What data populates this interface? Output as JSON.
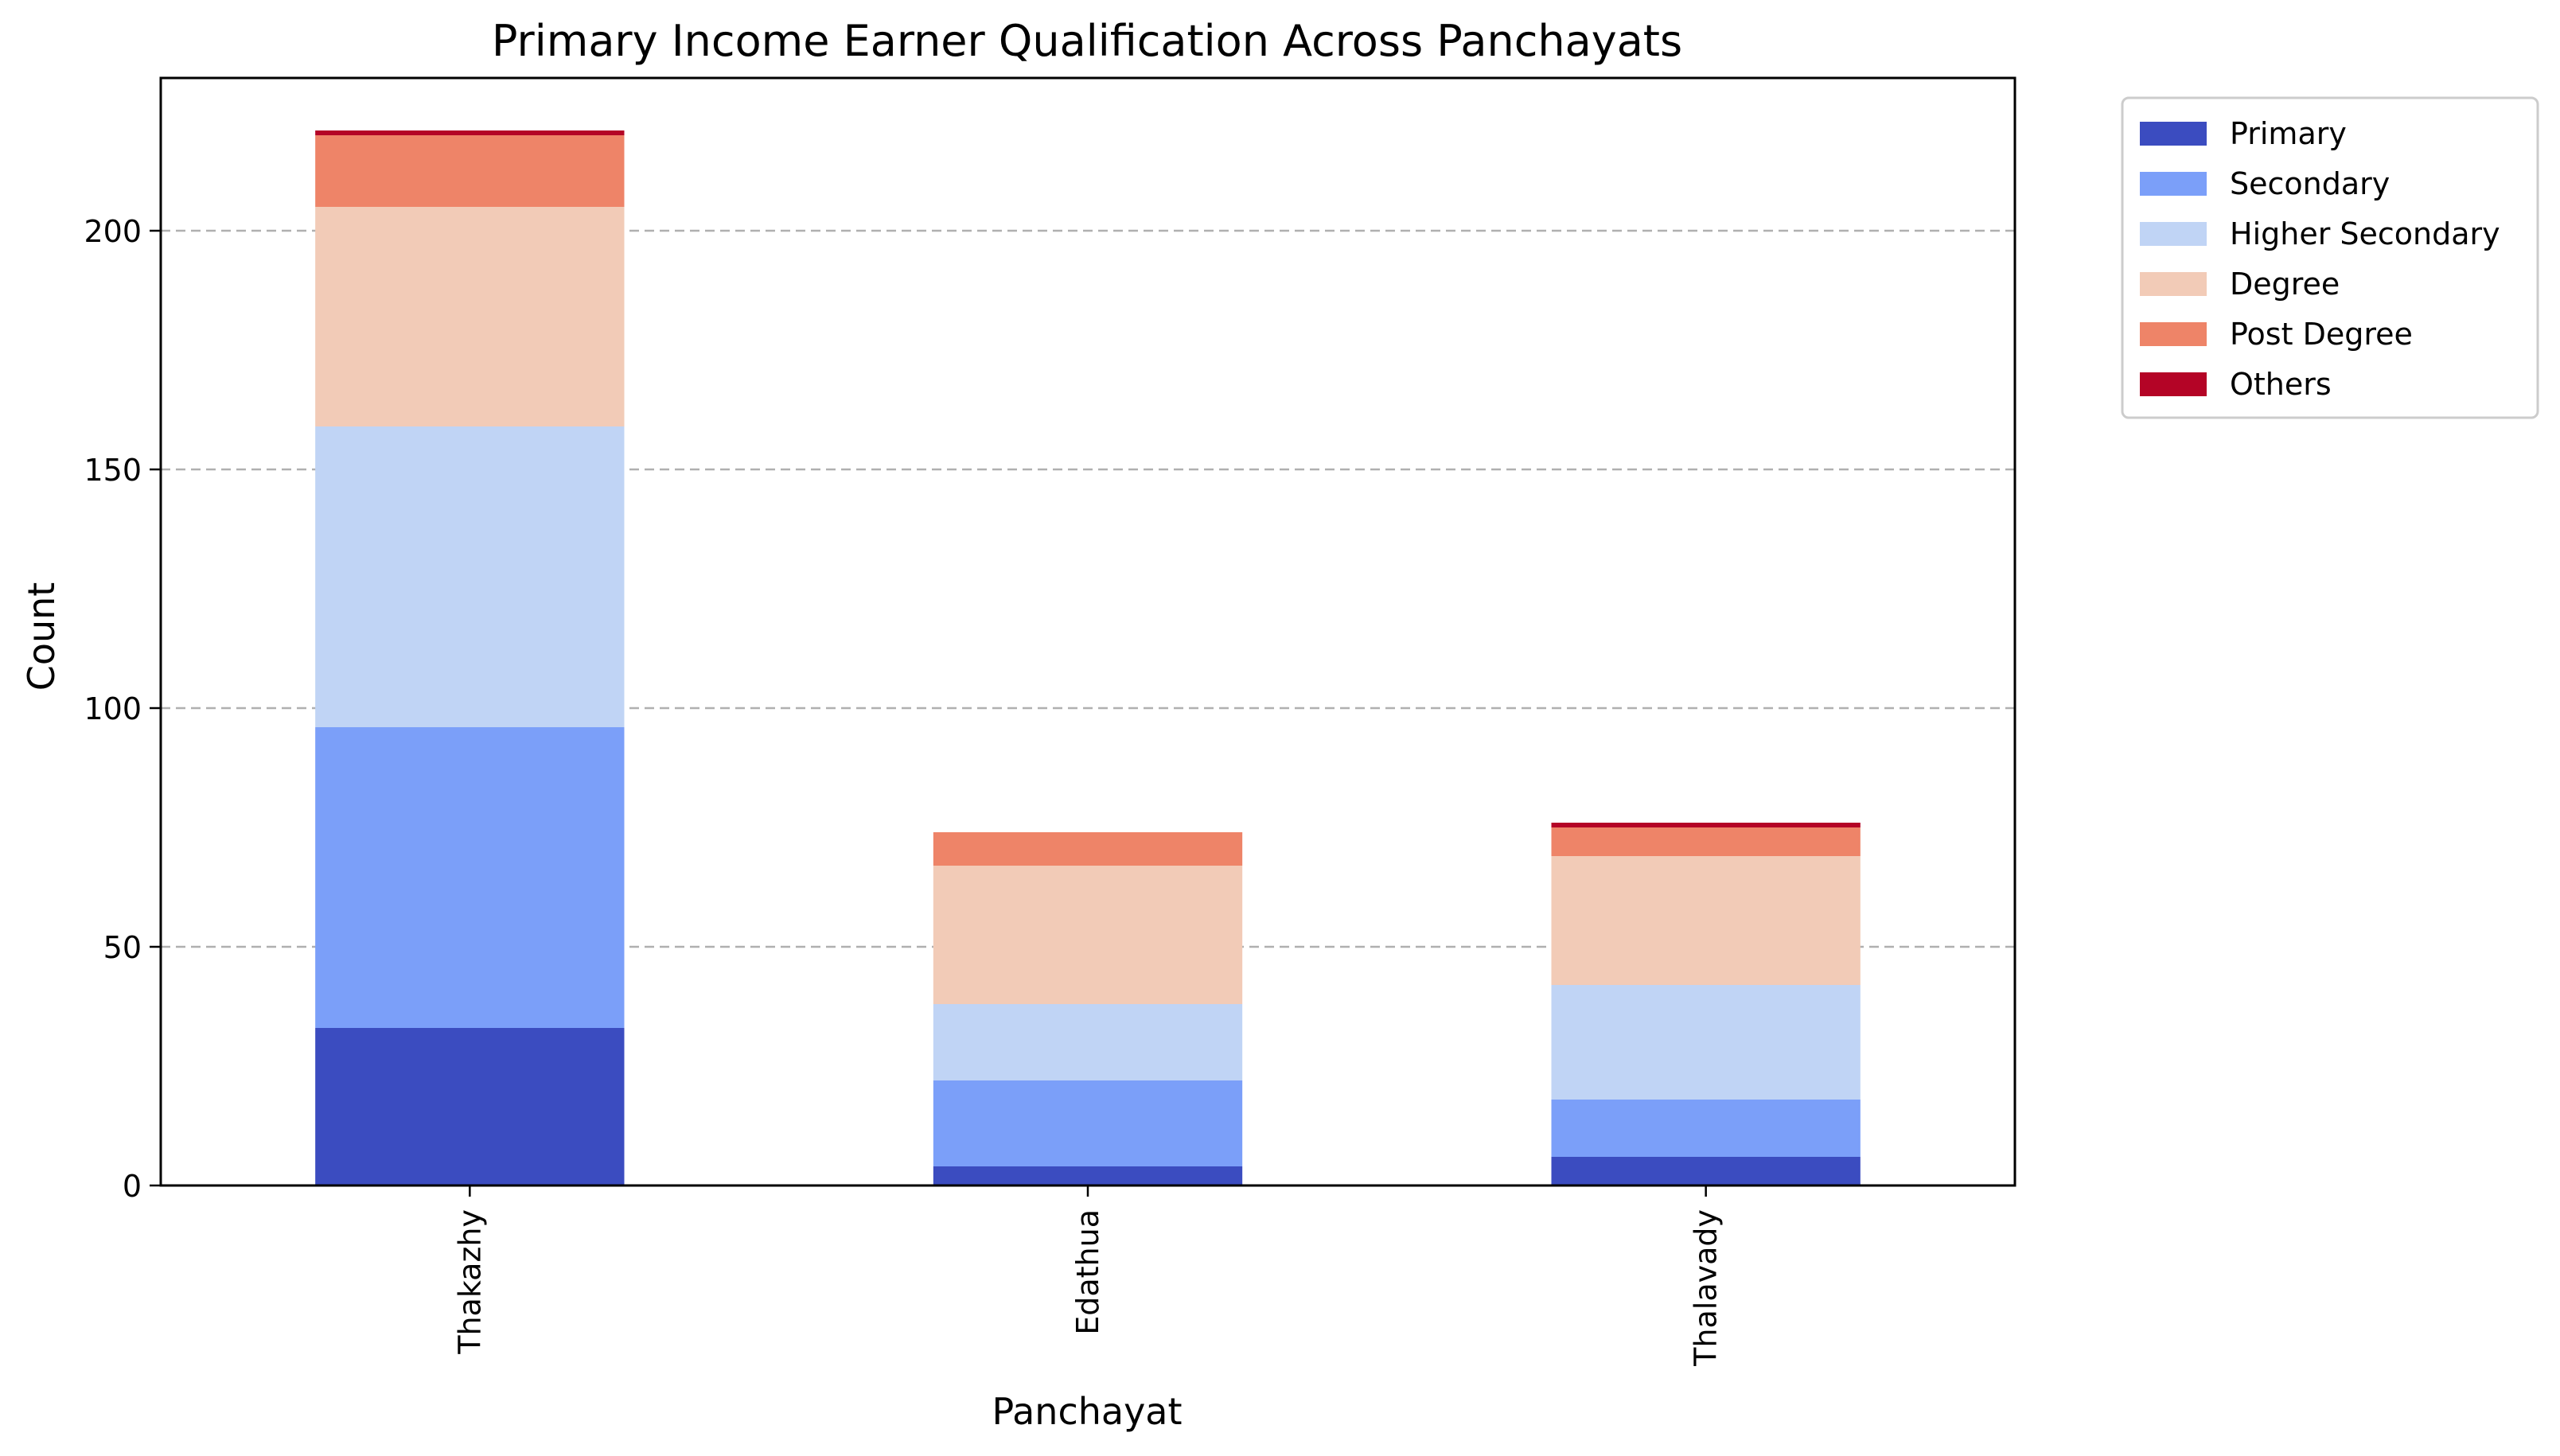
{
  "chart_data": {
    "type": "bar",
    "stacked": true,
    "title": "Primary Income Earner Qualification Across Panchayats",
    "xlabel": "Panchayat",
    "ylabel": "Count",
    "categories": [
      "Thakazhy",
      "Edathua",
      "Thalavady"
    ],
    "series": [
      {
        "name": "Primary",
        "color": "#3b4cc0",
        "values": [
          33,
          4,
          6
        ]
      },
      {
        "name": "Secondary",
        "color": "#7b9ff9",
        "values": [
          63,
          18,
          12
        ]
      },
      {
        "name": "Higher Secondary",
        "color": "#c0d4f5",
        "values": [
          63,
          16,
          24
        ]
      },
      {
        "name": "Degree",
        "color": "#f2cbb7",
        "values": [
          46,
          29,
          27
        ]
      },
      {
        "name": "Post Degree",
        "color": "#ee8468",
        "values": [
          15,
          7,
          6
        ]
      },
      {
        "name": "Others",
        "color": "#b40426",
        "values": [
          1,
          0,
          1
        ]
      }
    ],
    "ylim": [
      0,
      232
    ],
    "yticks": [
      0,
      50,
      100,
      150,
      200
    ],
    "grid": "y-dashed",
    "legend": "outside-top-right"
  }
}
